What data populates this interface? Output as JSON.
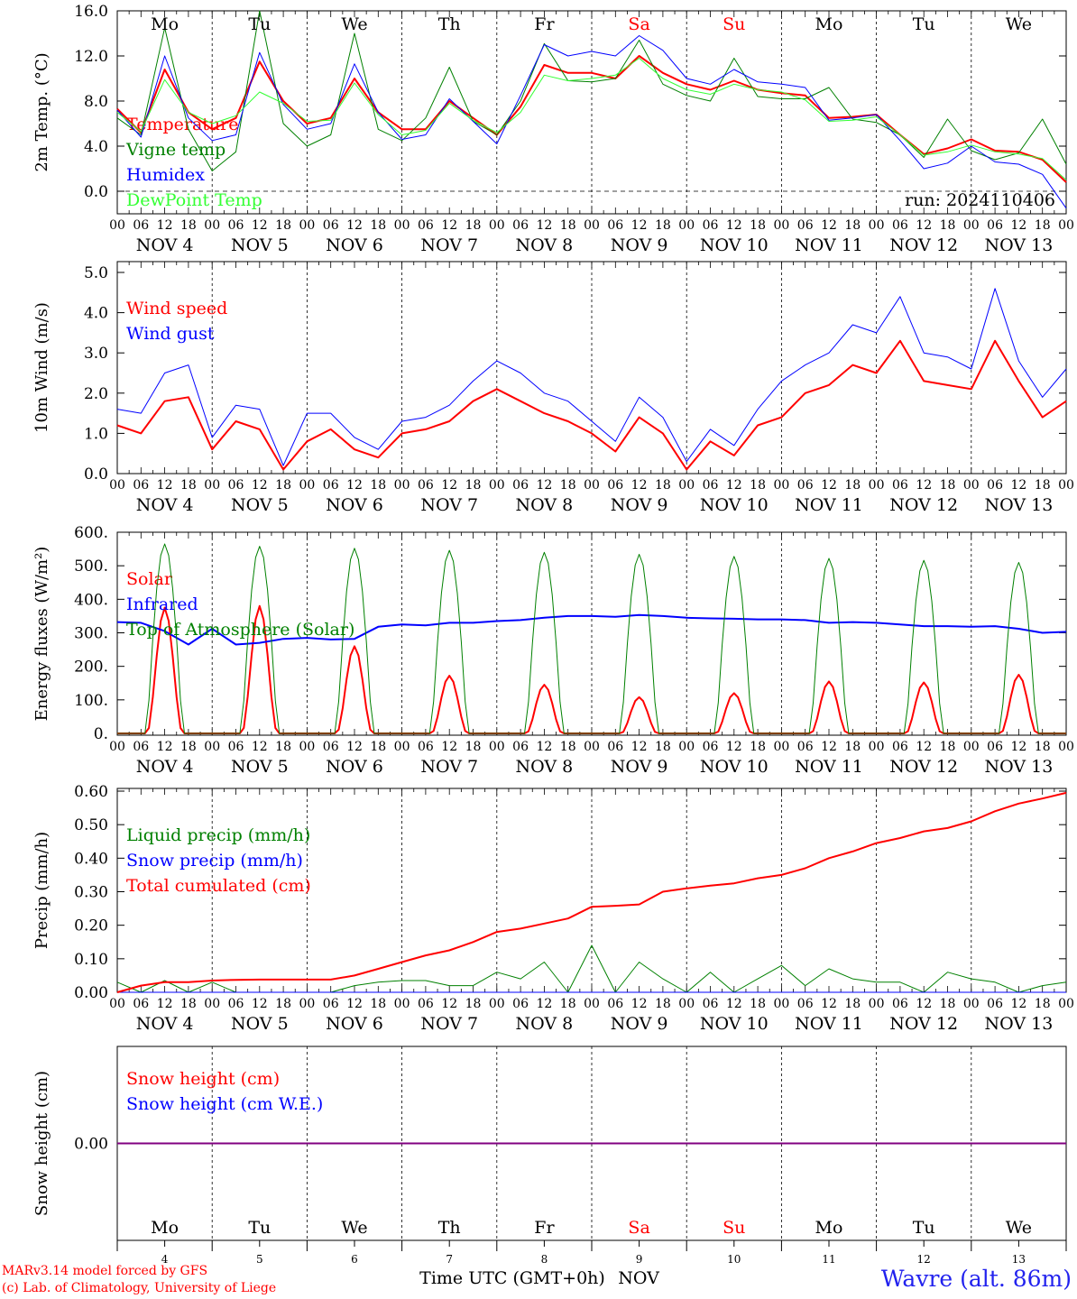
{
  "chart_data": {
    "type": "line",
    "run_label": "run: 2024110406",
    "x_hours": [
      0,
      6,
      12,
      18,
      24,
      30,
      36,
      42,
      48,
      54,
      60,
      66,
      72,
      78,
      84,
      90,
      96,
      102,
      108,
      114,
      120,
      126,
      132,
      138,
      144,
      150,
      156,
      162,
      168,
      174,
      180,
      186,
      192,
      198,
      204,
      210,
      216,
      222,
      228,
      234,
      240
    ],
    "hour_tick_labels": [
      "00",
      "06",
      "12",
      "18"
    ],
    "final_hour_label": "00",
    "date_labels": [
      "NOV  4",
      "NOV  5",
      "NOV  6",
      "NOV  7",
      "NOV  8",
      "NOV  9",
      "NOV 10",
      "NOV 11",
      "NOV 12",
      "NOV 13"
    ],
    "weekdays": [
      {
        "label": "Mo",
        "color": "#000000"
      },
      {
        "label": "Tu",
        "color": "#000000"
      },
      {
        "label": "We",
        "color": "#000000"
      },
      {
        "label": "Th",
        "color": "#000000"
      },
      {
        "label": "Fr",
        "color": "#000000"
      },
      {
        "label": "Sa",
        "color": "#ff0000"
      },
      {
        "label": "Su",
        "color": "#ff0000"
      },
      {
        "label": "Mo",
        "color": "#000000"
      },
      {
        "label": "Tu",
        "color": "#000000"
      },
      {
        "label": "We",
        "color": "#000000"
      }
    ],
    "bottom_day_numbers": [
      "4",
      "5",
      "6",
      "7",
      "8",
      "9",
      "10",
      "11",
      "12",
      "13"
    ],
    "x_axis_title": "Time UTC (GMT+0h)",
    "x_axis_month": "NOV",
    "panels": [
      {
        "ylabel": "2m Temp. (°C)",
        "ylim": [
          -2,
          16
        ],
        "yticks": [
          0,
          4,
          8,
          12,
          16
        ],
        "ytick_labels": [
          "0.0",
          "4.0",
          "8.0",
          "12.0",
          "16.0"
        ],
        "zero_dashed": true,
        "show_weekdays_top": true,
        "series": [
          {
            "name": "Temperature",
            "color": "#ff0000",
            "width": 2,
            "values": [
              7.3,
              5.2,
              10.8,
              7.0,
              5.5,
              6.5,
              11.5,
              8.0,
              6.0,
              6.5,
              10.0,
              7.0,
              5.5,
              5.5,
              8.0,
              6.5,
              5.0,
              7.5,
              11.2,
              10.5,
              10.5,
              10.0,
              12.0,
              10.5,
              9.5,
              9.0,
              9.8,
              9.0,
              8.7,
              8.5,
              6.5,
              6.6,
              6.8,
              5.0,
              3.3,
              3.8,
              4.6,
              3.6,
              3.5,
              2.8,
              0.8
            ]
          },
          {
            "name": "Vigne temp",
            "color": "#008000",
            "width": 1,
            "values": [
              6.5,
              5.0,
              14.5,
              5.5,
              1.8,
              3.5,
              16.0,
              6.0,
              4.0,
              5.0,
              14.0,
              5.5,
              4.5,
              6.5,
              11.0,
              6.2,
              5.0,
              8.0,
              13.1,
              9.8,
              9.7,
              10.0,
              13.4,
              9.5,
              8.5,
              8.0,
              11.8,
              8.4,
              8.2,
              8.2,
              9.2,
              6.4,
              6.1,
              5.0,
              3.0,
              6.4,
              3.6,
              2.8,
              3.4,
              6.4,
              2.4
            ]
          },
          {
            "name": "Humidex",
            "color": "#0000ff",
            "width": 1,
            "values": [
              7.2,
              4.8,
              12.0,
              6.5,
              4.5,
              5.0,
              12.3,
              7.7,
              5.5,
              6.0,
              11.3,
              7.0,
              4.6,
              5.0,
              8.2,
              6.2,
              4.2,
              8.5,
              13.0,
              12.0,
              12.4,
              12.0,
              13.8,
              12.5,
              10.0,
              9.5,
              10.8,
              9.7,
              9.5,
              9.2,
              6.3,
              6.5,
              6.8,
              4.5,
              2.0,
              2.5,
              4.0,
              2.6,
              2.4,
              1.5,
              -1.5
            ]
          },
          {
            "name": "DewPoint Temp",
            "color": "#33ff33",
            "width": 1,
            "values": [
              7.0,
              5.3,
              9.9,
              7.0,
              6.0,
              6.7,
              8.8,
              7.8,
              6.2,
              6.3,
              9.6,
              6.8,
              5.0,
              5.4,
              7.8,
              6.3,
              5.2,
              7.0,
              10.3,
              9.8,
              10.0,
              10.3,
              11.8,
              10.0,
              9.0,
              8.6,
              9.5,
              9.0,
              8.8,
              8.1,
              6.2,
              6.3,
              6.6,
              5.0,
              3.2,
              3.5,
              4.1,
              3.5,
              3.3,
              2.9,
              1.0
            ]
          }
        ]
      },
      {
        "ylabel": "10m Wind (m/s)",
        "ylim": [
          0,
          5
        ],
        "yticks": [
          0,
          1,
          2,
          3,
          4,
          5
        ],
        "ytick_labels": [
          "0.0",
          "1.0",
          "2.0",
          "3.0",
          "4.0",
          "5.0"
        ],
        "series": [
          {
            "name": "Wind speed",
            "color": "#ff0000",
            "width": 2,
            "values": [
              1.2,
              1.0,
              1.8,
              1.9,
              0.6,
              1.3,
              1.1,
              0.1,
              0.8,
              1.1,
              0.6,
              0.4,
              1.0,
              1.1,
              1.3,
              1.8,
              2.1,
              1.8,
              1.5,
              1.3,
              1.0,
              0.55,
              1.4,
              1.0,
              0.1,
              0.8,
              0.45,
              1.2,
              1.4,
              2.0,
              2.2,
              2.7,
              2.5,
              3.3,
              2.3,
              2.2,
              2.1,
              3.3,
              2.3,
              1.4,
              1.8
            ]
          },
          {
            "name": "Wind gust",
            "color": "#0000ff",
            "width": 1,
            "values": [
              1.6,
              1.5,
              2.5,
              2.7,
              0.9,
              1.7,
              1.6,
              0.2,
              1.5,
              1.5,
              0.9,
              0.6,
              1.3,
              1.4,
              1.7,
              2.3,
              2.8,
              2.5,
              2.0,
              1.8,
              1.3,
              0.8,
              1.9,
              1.4,
              0.3,
              1.1,
              0.7,
              1.6,
              2.3,
              2.7,
              3.0,
              3.7,
              3.5,
              4.4,
              3.0,
              2.9,
              2.6,
              4.6,
              2.8,
              1.9,
              2.6
            ]
          }
        ]
      },
      {
        "ylabel": "Energy fluxes (W/m²)",
        "ylim": [
          0,
          600
        ],
        "yticks": [
          0,
          100,
          200,
          300,
          400,
          500,
          600
        ],
        "ytick_labels": [
          "0.",
          "100.",
          "200.",
          "300.",
          "400.",
          "500.",
          "600."
        ],
        "series": [
          {
            "name": "Solar",
            "color": "#ff0000",
            "width": 2,
            "peaks": [
              375,
              380,
              260,
              172,
              145,
              108,
              120,
              155,
              152,
              175
            ]
          },
          {
            "name": "Infrared",
            "color": "#0000ff",
            "width": 2,
            "values": [
              332,
              330,
              305,
              265,
              312,
              265,
              270,
              282,
              285,
              280,
              282,
              318,
              325,
              322,
              330,
              330,
              335,
              338,
              345,
              350,
              350,
              348,
              353,
              350,
              345,
              343,
              342,
              340,
              340,
              338,
              330,
              332,
              330,
              325,
              320,
              320,
              318,
              320,
              312,
              300,
              303
            ]
          },
          {
            "name": "Top of Atmosphere (Solar)",
            "color": "#008000",
            "width": 1,
            "peaks": [
              565,
              558,
              552,
              546,
              540,
              534,
              528,
              522,
              516,
              510
            ]
          }
        ],
        "sun_window_hours": [
          7.5,
          16.5
        ]
      },
      {
        "ylabel": "Precip (mm/h)",
        "ylim": [
          0,
          0.6
        ],
        "yticks": [
          0,
          0.1,
          0.2,
          0.3,
          0.4,
          0.5,
          0.6
        ],
        "ytick_labels": [
          "0.00",
          "0.10",
          "0.20",
          "0.30",
          "0.40",
          "0.50",
          "0.60"
        ],
        "series": [
          {
            "name": "Liquid precip (mm/h)",
            "color": "#008000",
            "width": 1,
            "values": [
              0.03,
              0.0,
              0.035,
              0.0,
              0.03,
              0.0,
              0.0,
              0.0,
              0.0,
              0.0,
              0.02,
              0.03,
              0.035,
              0.035,
              0.02,
              0.02,
              0.06,
              0.04,
              0.09,
              0.0,
              0.14,
              0.0,
              0.09,
              0.04,
              0.0,
              0.06,
              0.0,
              0.04,
              0.08,
              0.02,
              0.07,
              0.04,
              0.03,
              0.03,
              0.0,
              0.06,
              0.04,
              0.03,
              0.0,
              0.02,
              0.03
            ]
          },
          {
            "name": "Snow precip (mm/h)",
            "color": "#0000ff",
            "width": 1,
            "values": [
              0,
              0,
              0,
              0,
              0,
              0,
              0,
              0,
              0,
              0,
              0,
              0,
              0,
              0,
              0,
              0,
              0,
              0,
              0,
              0,
              0,
              0,
              0,
              0,
              0,
              0,
              0,
              0,
              0,
              0,
              0,
              0,
              0,
              0,
              0,
              0,
              0,
              0,
              0,
              0,
              0
            ]
          },
          {
            "name": "Total cumulated (cm)",
            "color": "#ff0000",
            "width": 2,
            "values": [
              0.0,
              0.02,
              0.03,
              0.03,
              0.035,
              0.037,
              0.038,
              0.038,
              0.038,
              0.038,
              0.05,
              0.07,
              0.09,
              0.11,
              0.125,
              0.15,
              0.18,
              0.19,
              0.205,
              0.22,
              0.255,
              0.258,
              0.262,
              0.3,
              0.31,
              0.318,
              0.325,
              0.34,
              0.35,
              0.37,
              0.4,
              0.42,
              0.445,
              0.46,
              0.48,
              0.49,
              0.51,
              0.54,
              0.563,
              0.578,
              0.595
            ]
          }
        ]
      },
      {
        "ylabel": "Snow height (cm)",
        "ylim": [
          -1,
          1
        ],
        "yticks": [
          0
        ],
        "ytick_labels": [
          "0.00"
        ],
        "show_weekdays_bottom": true,
        "series": [
          {
            "name": "Snow height (cm)",
            "color": "#ff0000",
            "width": 2,
            "values": [
              0,
              0,
              0,
              0,
              0,
              0,
              0,
              0,
              0,
              0,
              0,
              0,
              0,
              0,
              0,
              0,
              0,
              0,
              0,
              0,
              0,
              0,
              0,
              0,
              0,
              0,
              0,
              0,
              0,
              0,
              0,
              0,
              0,
              0,
              0,
              0,
              0,
              0,
              0,
              0,
              0
            ]
          },
          {
            "name": "Snow height (cm W.E.)",
            "color": "#0000ff",
            "width": 2,
            "values": [
              0,
              0,
              0,
              0,
              0,
              0,
              0,
              0,
              0,
              0,
              0,
              0,
              0,
              0,
              0,
              0,
              0,
              0,
              0,
              0,
              0,
              0,
              0,
              0,
              0,
              0,
              0,
              0,
              0,
              0,
              0,
              0,
              0,
              0,
              0,
              0,
              0,
              0,
              0,
              0,
              0
            ]
          }
        ]
      }
    ]
  },
  "footer": {
    "model_line": "MARv3.14 model forced by GFS",
    "credit_line": "(c) Lab. of Climatology, University of Liege",
    "station": "Wavre (alt. 86m)"
  }
}
